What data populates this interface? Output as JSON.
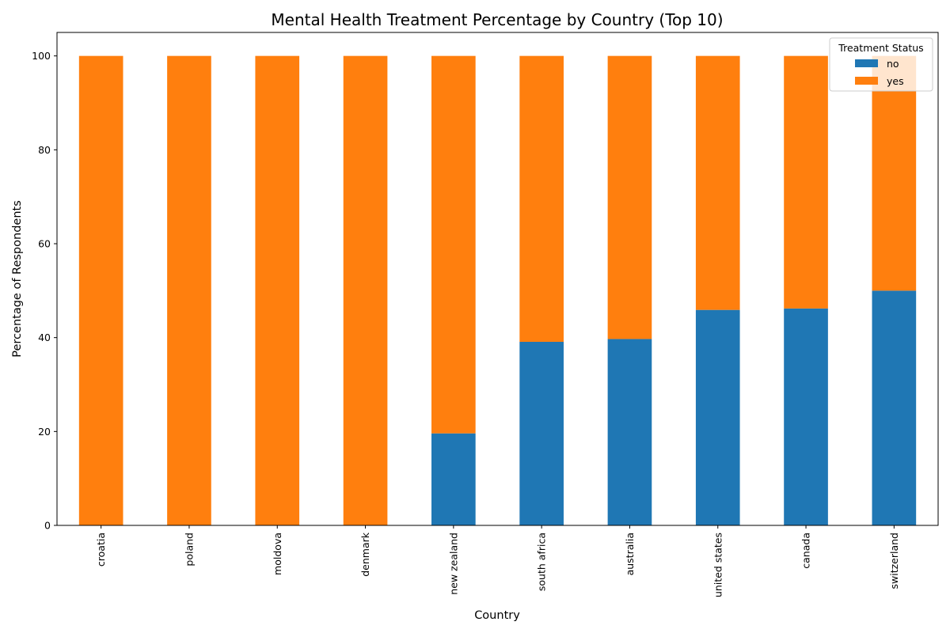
{
  "chart_data": {
    "type": "bar",
    "stacked": true,
    "title": "Mental Health Treatment Percentage by Country (Top 10)",
    "xlabel": "Country",
    "ylabel": "Percentage of Respondents",
    "ylim": [
      0,
      105
    ],
    "yticks": [
      0,
      20,
      40,
      60,
      80,
      100
    ],
    "categories": [
      "croatia",
      "poland",
      "moldova",
      "denmark",
      "new zealand",
      "south africa",
      "australia",
      "united states",
      "canada",
      "switzerland"
    ],
    "series": [
      {
        "name": "no",
        "color": "#1f77b4",
        "values": [
          0,
          0,
          0,
          0,
          19.6,
          39.1,
          39.7,
          45.9,
          46.2,
          50.0
        ]
      },
      {
        "name": "yes",
        "color": "#ff7f0e",
        "values": [
          100,
          100,
          100,
          100,
          80.4,
          60.9,
          60.3,
          54.1,
          53.8,
          50.0
        ]
      }
    ],
    "legend": {
      "title": "Treatment Status",
      "placement": "top-right"
    },
    "grid": false
  }
}
